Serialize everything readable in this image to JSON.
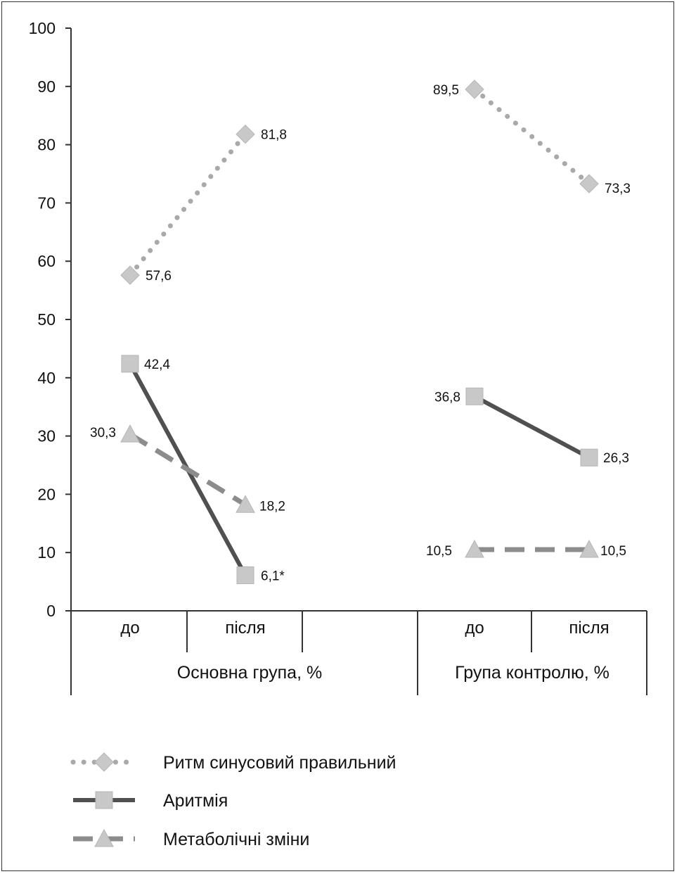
{
  "chart_data": {
    "type": "line",
    "ylim": [
      0,
      100
    ],
    "yticks": [
      "0",
      "10",
      "20",
      "30",
      "40",
      "50",
      "60",
      "70",
      "80",
      "90",
      "100"
    ],
    "groups": [
      {
        "label": "Основна група, %",
        "categories": [
          "до",
          "після"
        ]
      },
      {
        "label": "Група контролю, %",
        "categories": [
          "до",
          "після"
        ]
      }
    ],
    "series": [
      {
        "name": "Ритм синусовий правильний",
        "style": "dotted",
        "marker": "diamond",
        "color": "#a9a9a9",
        "marker_color": "#c8c8c8",
        "groups": [
          {
            "values": [
              57.6,
              81.8
            ],
            "labels": [
              "57,6",
              "81,8"
            ]
          },
          {
            "values": [
              89.5,
              73.3
            ],
            "labels": [
              "89,5",
              "73,3"
            ]
          }
        ]
      },
      {
        "name": "Аритмія",
        "style": "solid",
        "marker": "square",
        "color": "#505050",
        "marker_color": "#c8c8c8",
        "groups": [
          {
            "values": [
              42.4,
              6.1
            ],
            "labels": [
              "42,4",
              "6,1*"
            ]
          },
          {
            "values": [
              36.8,
              26.3
            ],
            "labels": [
              "36,8",
              "26,3"
            ]
          }
        ]
      },
      {
        "name": "Метаболічні зміни",
        "style": "dashed",
        "marker": "triangle",
        "color": "#8c8c8c",
        "marker_color": "#c8c8c8",
        "groups": [
          {
            "values": [
              30.3,
              18.2
            ],
            "labels": [
              "30,3",
              "18,2"
            ]
          },
          {
            "values": [
              10.5,
              10.5
            ],
            "labels": [
              "10,5",
              "10,5"
            ]
          }
        ]
      }
    ]
  }
}
